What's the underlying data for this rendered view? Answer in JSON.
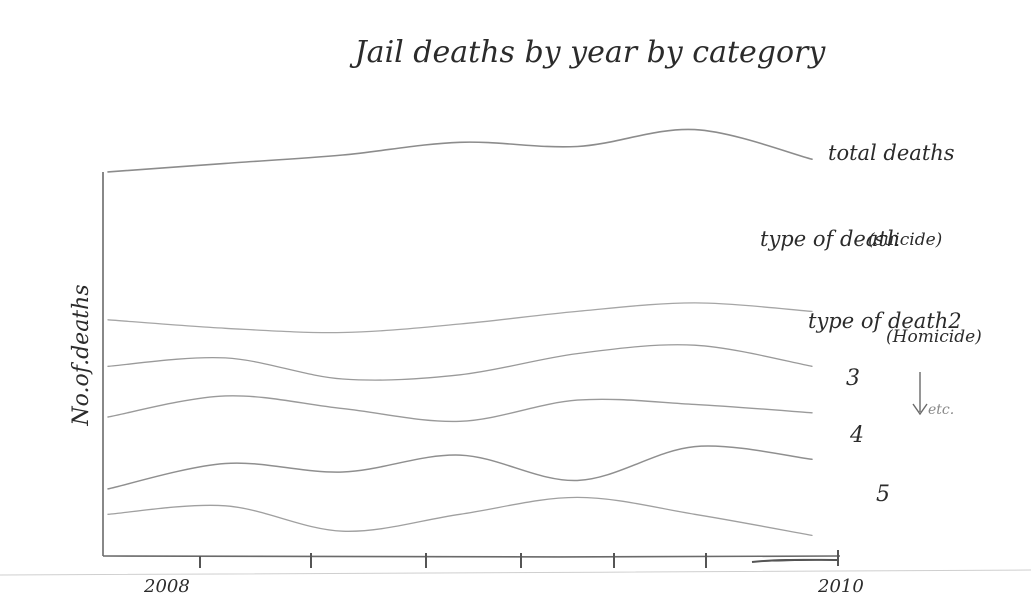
{
  "chart_data": {
    "type": "line",
    "title": "Jail deaths by year by category",
    "ylabel": "No.of.deaths",
    "xlabel": "",
    "x_start_label": "2008",
    "x_end_label": "2010",
    "sketch": true,
    "series": [
      {
        "name": "total deaths",
        "name_line2": "",
        "values": [
          0.93,
          0.95,
          0.97,
          1.0,
          0.99,
          1.03,
          0.96
        ]
      },
      {
        "name": "type of death",
        "name_line2": "(suicide)",
        "values": [
          0.58,
          0.56,
          0.55,
          0.57,
          0.6,
          0.62,
          0.6
        ]
      },
      {
        "name": "type of death2",
        "name_line2": "(Homicide)",
        "values": [
          0.47,
          0.49,
          0.44,
          0.45,
          0.5,
          0.52,
          0.47
        ]
      },
      {
        "name": "3",
        "name_line2": "",
        "values": [
          0.35,
          0.4,
          0.37,
          0.34,
          0.39,
          0.38,
          0.36
        ]
      },
      {
        "name": "4",
        "name_line2": "",
        "values": [
          0.18,
          0.24,
          0.22,
          0.26,
          0.2,
          0.28,
          0.25
        ]
      },
      {
        "name": "5",
        "name_line2": "",
        "values": [
          0.12,
          0.14,
          0.08,
          0.12,
          0.16,
          0.12,
          0.07
        ]
      }
    ],
    "annotation": "etc."
  }
}
